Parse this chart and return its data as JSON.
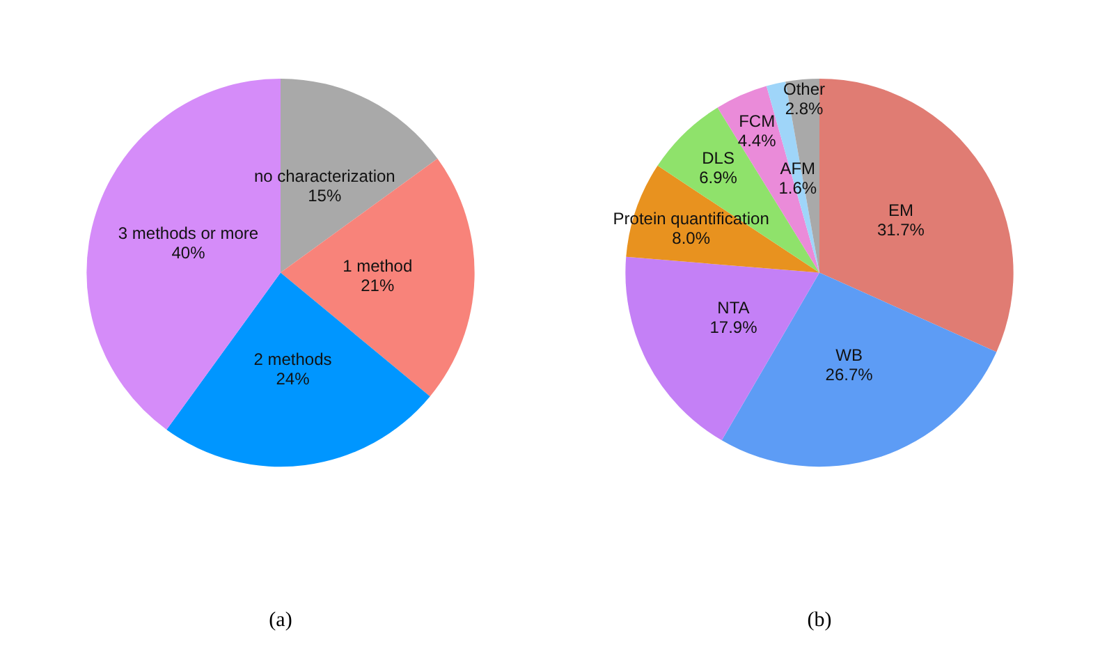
{
  "chart_data": [
    {
      "type": "pie",
      "title": "(a)",
      "categories": [
        "no characterization",
        "1 method",
        "2 methods",
        "3 methods or more"
      ],
      "values": [
        15,
        21,
        24,
        40
      ],
      "value_labels": [
        "15%",
        "21%",
        "24%",
        "40%"
      ],
      "colors": [
        "#a9a9a9",
        "#f8837a",
        "#0096ff",
        "#d58cf9"
      ]
    },
    {
      "type": "pie",
      "title": "(b)",
      "categories": [
        "EM",
        "WB",
        "NTA",
        "Protein quantification",
        "DLS",
        "FCM",
        "AFM",
        "Other"
      ],
      "values": [
        31.7,
        26.7,
        17.9,
        8.0,
        6.9,
        4.4,
        1.6,
        2.8
      ],
      "value_labels": [
        "31.7%",
        "26.7%",
        "17.9%",
        "8.0%",
        "6.9%",
        "4.4%",
        "1.6%",
        "2.8%"
      ],
      "colors": [
        "#e07c73",
        "#5d9cf5",
        "#c480f6",
        "#e8921f",
        "#8fe26b",
        "#ea8bd9",
        "#9fd5f9",
        "#a9a9a9"
      ]
    }
  ]
}
